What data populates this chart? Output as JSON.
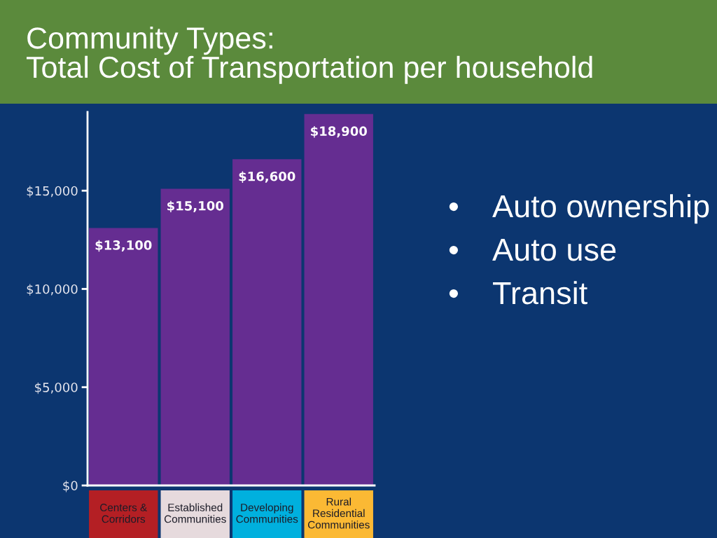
{
  "chart_data": {
    "type": "bar",
    "title": "Community Types:\nTotal Cost of Transportation per household",
    "categories": [
      "Centers &\nCorridors",
      "Established\nCommunities",
      "Developing\nCommunities",
      "Rural\nResidential\nCommunities"
    ],
    "values": [
      13100,
      15100,
      16600,
      18900
    ],
    "color": "#652d91",
    "value_labels": [
      "$13,100",
      "$15,100",
      "$16,600",
      "$18,900"
    ],
    "ylim": [
      0,
      19000
    ],
    "yticks": [
      {
        "value": 0,
        "label": "$0"
      },
      {
        "value": 5000,
        "label": "$5,000"
      },
      {
        "value": 10000,
        "label": "$10,000"
      },
      {
        "value": 15000,
        "label": "$15,000"
      }
    ],
    "annotations": [
      "• Auto ownership",
      "• Auto use",
      "• Transit"
    ]
  }
}
